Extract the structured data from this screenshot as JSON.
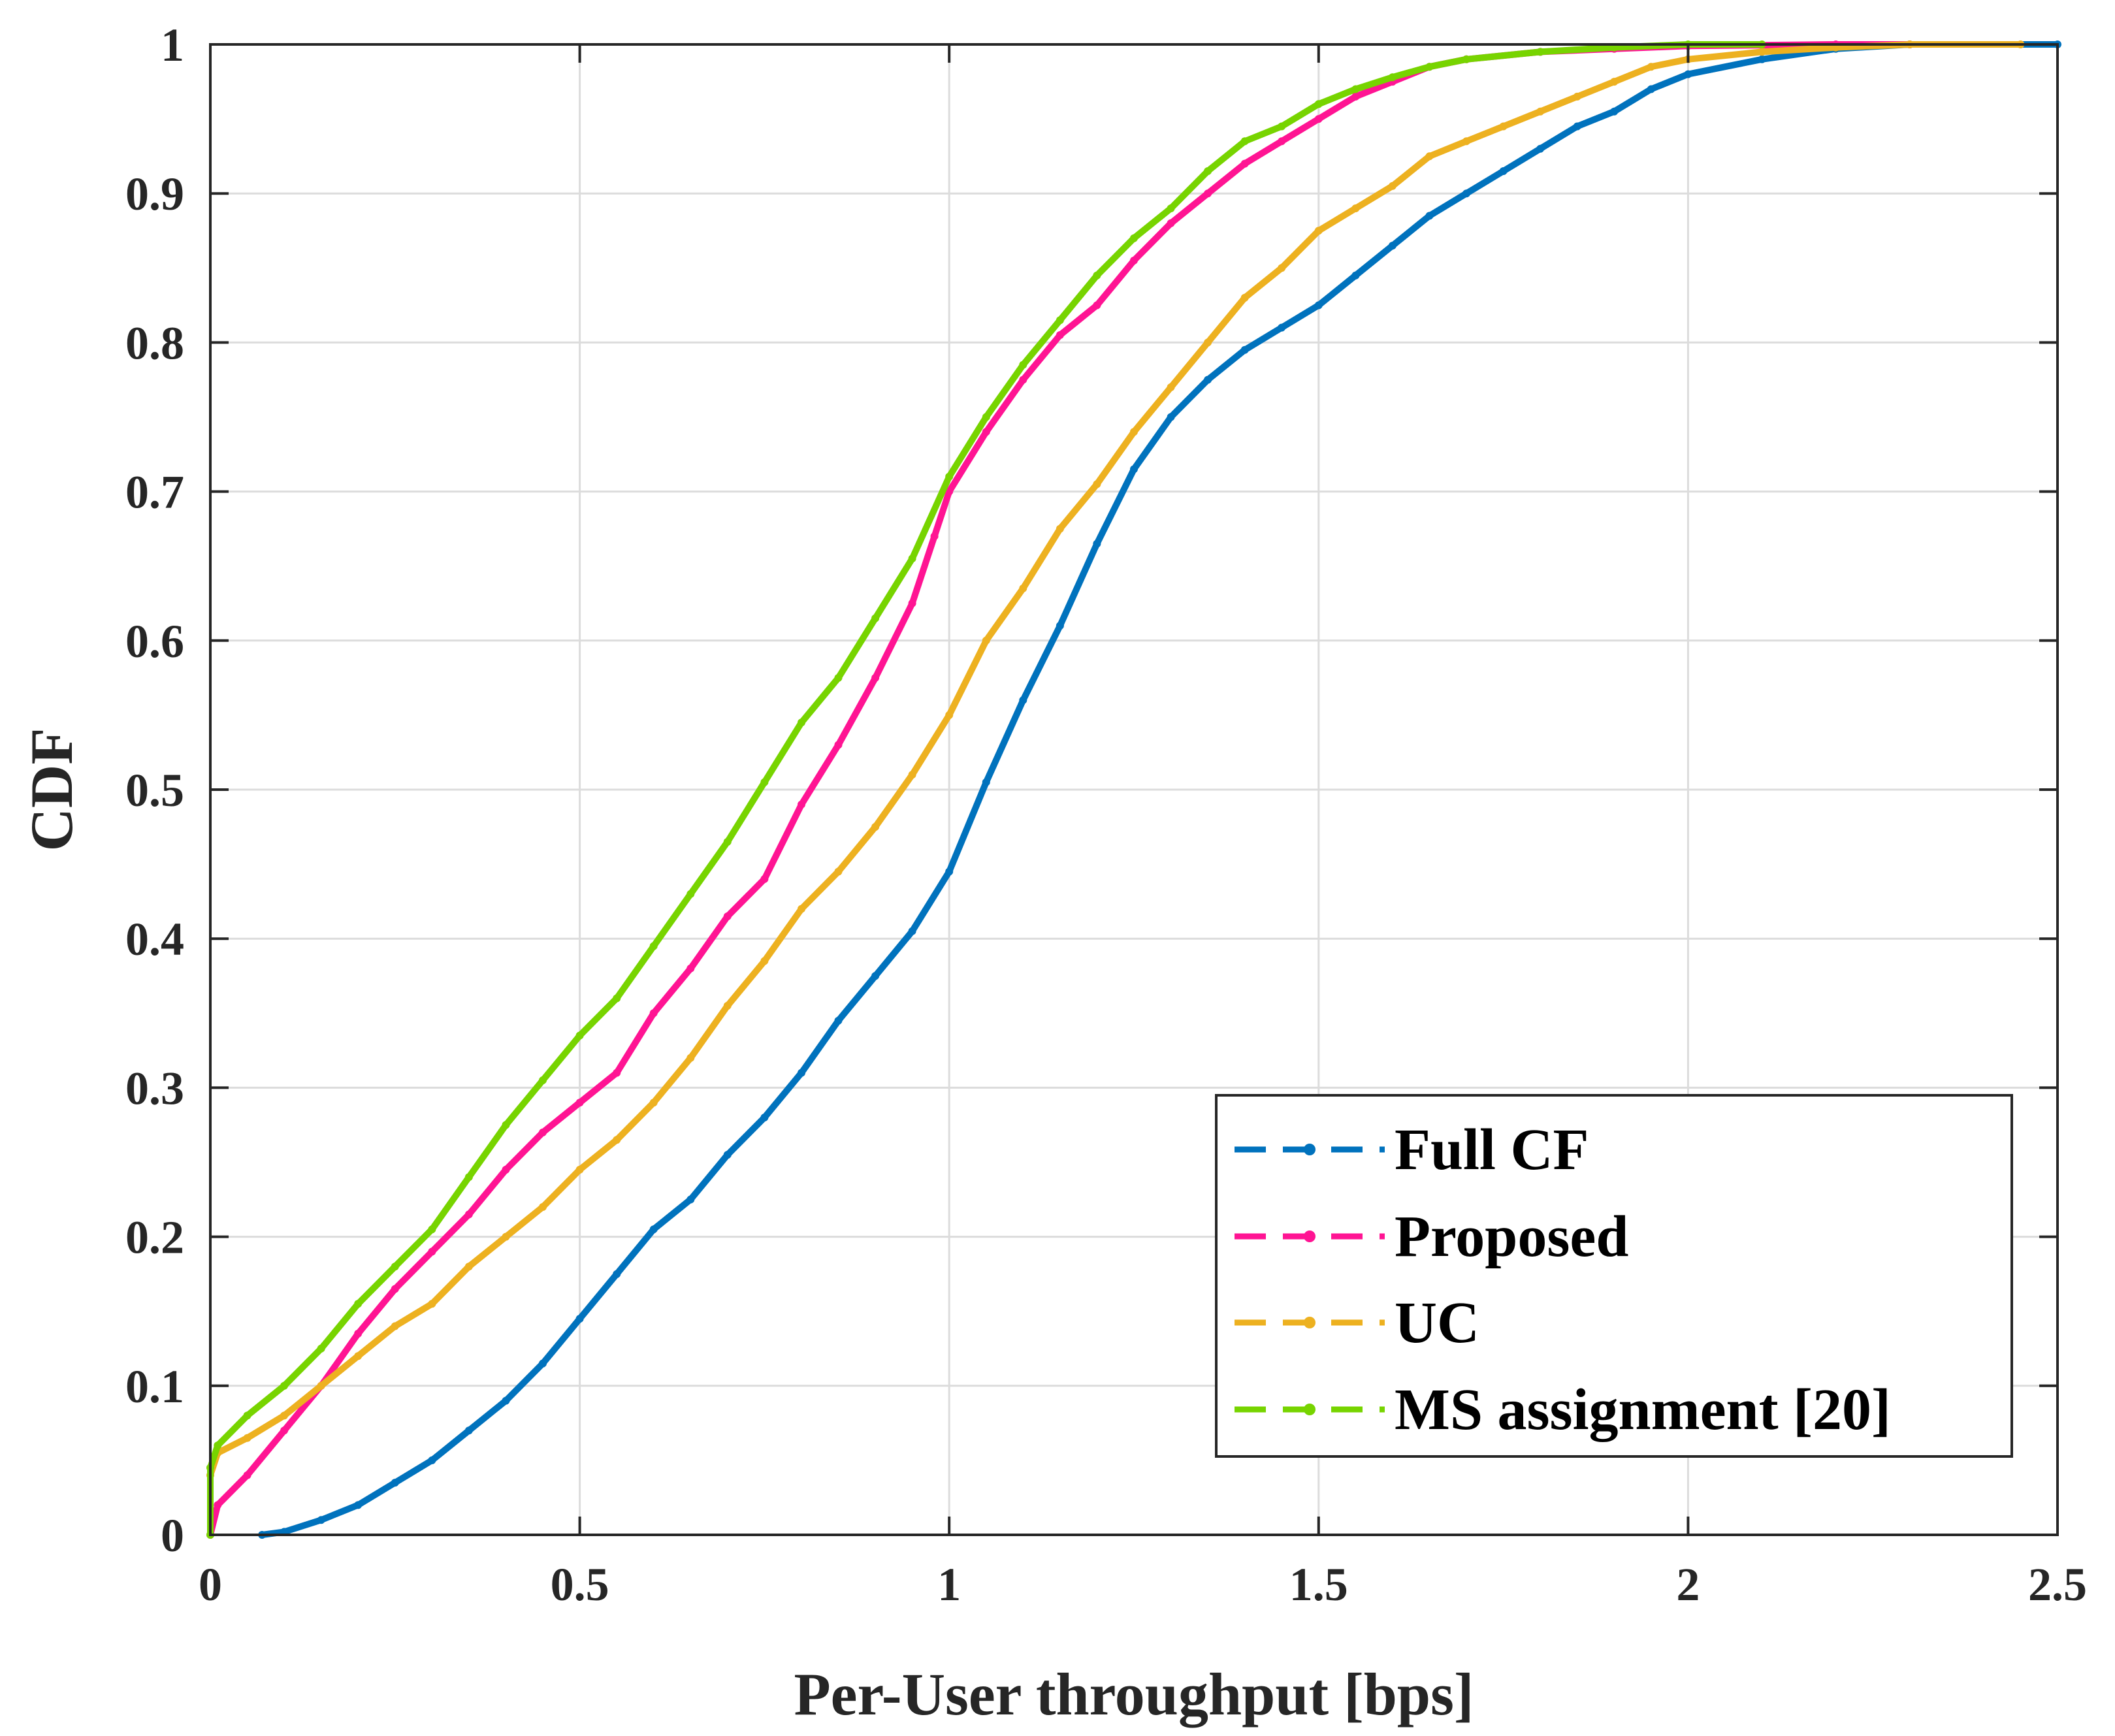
{
  "chart_data": {
    "type": "line",
    "title": "",
    "xlabel": "Per-User throughput [bps]",
    "ylabel": "CDF",
    "xlim": [
      0,
      2.5
    ],
    "ylim": [
      0,
      1
    ],
    "grid": true,
    "legend_position": "bottom-right",
    "xticks": [
      0,
      0.5,
      1,
      1.5,
      2,
      2.5
    ],
    "xtick_labels": [
      "0",
      "0.5",
      "1",
      "1.5",
      "2",
      "2.5"
    ],
    "yticks": [
      0,
      0.1,
      0.2,
      0.3,
      0.4,
      0.5,
      0.6,
      0.7,
      0.8,
      0.9,
      1
    ],
    "ytick_labels": [
      "0",
      "0.1",
      "0.2",
      "0.3",
      "0.4",
      "0.5",
      "0.6",
      "0.7",
      "0.8",
      "0.9",
      "1"
    ],
    "series": [
      {
        "name": "Full CF",
        "color": "#0072BD",
        "points": [
          [
            0.07,
            0
          ],
          [
            0.1,
            0.002
          ],
          [
            0.15,
            0.01
          ],
          [
            0.2,
            0.02
          ],
          [
            0.25,
            0.035
          ],
          [
            0.3,
            0.05
          ],
          [
            0.35,
            0.07
          ],
          [
            0.4,
            0.09
          ],
          [
            0.45,
            0.115
          ],
          [
            0.5,
            0.145
          ],
          [
            0.55,
            0.175
          ],
          [
            0.6,
            0.205
          ],
          [
            0.65,
            0.225
          ],
          [
            0.7,
            0.255
          ],
          [
            0.75,
            0.28
          ],
          [
            0.8,
            0.31
          ],
          [
            0.85,
            0.345
          ],
          [
            0.9,
            0.375
          ],
          [
            0.95,
            0.405
          ],
          [
            1.0,
            0.445
          ],
          [
            1.05,
            0.505
          ],
          [
            1.1,
            0.56
          ],
          [
            1.15,
            0.61
          ],
          [
            1.2,
            0.665
          ],
          [
            1.25,
            0.715
          ],
          [
            1.3,
            0.75
          ],
          [
            1.35,
            0.775
          ],
          [
            1.4,
            0.795
          ],
          [
            1.45,
            0.81
          ],
          [
            1.5,
            0.825
          ],
          [
            1.55,
            0.845
          ],
          [
            1.6,
            0.865
          ],
          [
            1.65,
            0.885
          ],
          [
            1.7,
            0.9
          ],
          [
            1.75,
            0.915
          ],
          [
            1.8,
            0.93
          ],
          [
            1.85,
            0.945
          ],
          [
            1.9,
            0.955
          ],
          [
            1.95,
            0.97
          ],
          [
            2.0,
            0.98
          ],
          [
            2.1,
            0.99
          ],
          [
            2.2,
            0.997
          ],
          [
            2.3,
            1.0
          ],
          [
            2.5,
            1.0
          ]
        ]
      },
      {
        "name": "Proposed",
        "color": "#FF1493",
        "points": [
          [
            0,
            0
          ],
          [
            0.01,
            0.02
          ],
          [
            0.05,
            0.04
          ],
          [
            0.1,
            0.07
          ],
          [
            0.15,
            0.1
          ],
          [
            0.2,
            0.135
          ],
          [
            0.25,
            0.165
          ],
          [
            0.3,
            0.19
          ],
          [
            0.35,
            0.215
          ],
          [
            0.4,
            0.245
          ],
          [
            0.45,
            0.27
          ],
          [
            0.5,
            0.29
          ],
          [
            0.55,
            0.31
          ],
          [
            0.6,
            0.35
          ],
          [
            0.65,
            0.38
          ],
          [
            0.7,
            0.415
          ],
          [
            0.75,
            0.44
          ],
          [
            0.8,
            0.49
          ],
          [
            0.85,
            0.53
          ],
          [
            0.9,
            0.575
          ],
          [
            0.95,
            0.625
          ],
          [
            0.98,
            0.67
          ],
          [
            1.0,
            0.7
          ],
          [
            1.05,
            0.74
          ],
          [
            1.1,
            0.775
          ],
          [
            1.15,
            0.805
          ],
          [
            1.2,
            0.825
          ],
          [
            1.25,
            0.855
          ],
          [
            1.3,
            0.88
          ],
          [
            1.35,
            0.9
          ],
          [
            1.4,
            0.92
          ],
          [
            1.45,
            0.935
          ],
          [
            1.5,
            0.95
          ],
          [
            1.55,
            0.965
          ],
          [
            1.6,
            0.975
          ],
          [
            1.65,
            0.985
          ],
          [
            1.7,
            0.99
          ],
          [
            1.8,
            0.995
          ],
          [
            1.9,
            0.997
          ],
          [
            2.0,
            0.999
          ],
          [
            2.2,
            1.0
          ],
          [
            2.3,
            1.0
          ]
        ]
      },
      {
        "name": "UC",
        "color": "#EDB120",
        "points": [
          [
            0,
            0.04
          ],
          [
            0.01,
            0.055
          ],
          [
            0.05,
            0.065
          ],
          [
            0.1,
            0.08
          ],
          [
            0.15,
            0.1
          ],
          [
            0.2,
            0.12
          ],
          [
            0.25,
            0.14
          ],
          [
            0.3,
            0.155
          ],
          [
            0.35,
            0.18
          ],
          [
            0.4,
            0.2
          ],
          [
            0.45,
            0.22
          ],
          [
            0.5,
            0.245
          ],
          [
            0.55,
            0.265
          ],
          [
            0.6,
            0.29
          ],
          [
            0.65,
            0.32
          ],
          [
            0.7,
            0.355
          ],
          [
            0.75,
            0.385
          ],
          [
            0.8,
            0.42
          ],
          [
            0.85,
            0.445
          ],
          [
            0.9,
            0.475
          ],
          [
            0.95,
            0.51
          ],
          [
            1.0,
            0.55
          ],
          [
            1.05,
            0.6
          ],
          [
            1.1,
            0.635
          ],
          [
            1.15,
            0.675
          ],
          [
            1.2,
            0.705
          ],
          [
            1.25,
            0.74
          ],
          [
            1.3,
            0.77
          ],
          [
            1.35,
            0.8
          ],
          [
            1.4,
            0.83
          ],
          [
            1.45,
            0.85
          ],
          [
            1.5,
            0.875
          ],
          [
            1.55,
            0.89
          ],
          [
            1.6,
            0.905
          ],
          [
            1.65,
            0.925
          ],
          [
            1.7,
            0.935
          ],
          [
            1.75,
            0.945
          ],
          [
            1.8,
            0.955
          ],
          [
            1.85,
            0.965
          ],
          [
            1.9,
            0.975
          ],
          [
            1.95,
            0.985
          ],
          [
            2.0,
            0.99
          ],
          [
            2.1,
            0.995
          ],
          [
            2.2,
            0.998
          ],
          [
            2.3,
            1.0
          ],
          [
            2.45,
            1.0
          ]
        ]
      },
      {
        "name": "MS assignment [20]",
        "color": "#77D400",
        "points": [
          [
            0,
            0
          ],
          [
            0,
            0.045
          ],
          [
            0.01,
            0.06
          ],
          [
            0.05,
            0.08
          ],
          [
            0.1,
            0.1
          ],
          [
            0.15,
            0.125
          ],
          [
            0.2,
            0.155
          ],
          [
            0.25,
            0.18
          ],
          [
            0.3,
            0.205
          ],
          [
            0.35,
            0.24
          ],
          [
            0.4,
            0.275
          ],
          [
            0.45,
            0.305
          ],
          [
            0.5,
            0.335
          ],
          [
            0.55,
            0.36
          ],
          [
            0.6,
            0.395
          ],
          [
            0.65,
            0.43
          ],
          [
            0.7,
            0.465
          ],
          [
            0.75,
            0.505
          ],
          [
            0.8,
            0.545
          ],
          [
            0.85,
            0.575
          ],
          [
            0.9,
            0.615
          ],
          [
            0.95,
            0.655
          ],
          [
            1.0,
            0.71
          ],
          [
            1.05,
            0.75
          ],
          [
            1.1,
            0.785
          ],
          [
            1.15,
            0.815
          ],
          [
            1.2,
            0.845
          ],
          [
            1.25,
            0.87
          ],
          [
            1.3,
            0.89
          ],
          [
            1.35,
            0.915
          ],
          [
            1.4,
            0.935
          ],
          [
            1.45,
            0.945
          ],
          [
            1.5,
            0.96
          ],
          [
            1.55,
            0.97
          ],
          [
            1.6,
            0.978
          ],
          [
            1.65,
            0.985
          ],
          [
            1.7,
            0.99
          ],
          [
            1.8,
            0.995
          ],
          [
            1.9,
            0.998
          ],
          [
            2.0,
            1.0
          ],
          [
            2.1,
            1.0
          ]
        ]
      }
    ]
  }
}
